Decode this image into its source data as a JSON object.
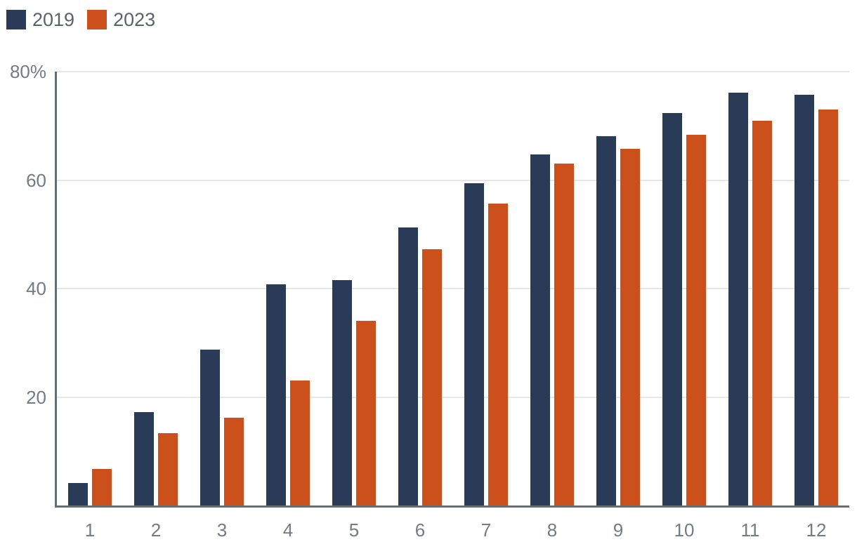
{
  "chart_data": {
    "type": "bar",
    "title": "",
    "xlabel": "",
    "ylabel": "",
    "categories": [
      "1",
      "2",
      "3",
      "4",
      "5",
      "6",
      "7",
      "8",
      "9",
      "10",
      "11",
      "12"
    ],
    "series": [
      {
        "name": "2019",
        "color": "#293B57",
        "values": [
          4.1,
          17.2,
          28.8,
          40.8,
          41.5,
          51.2,
          59.4,
          64.7,
          68.1,
          72.4,
          76.1,
          75.7
        ]
      },
      {
        "name": "2023",
        "color": "#CB501C",
        "values": [
          6.7,
          13.4,
          16.2,
          23.1,
          34.0,
          47.2,
          55.7,
          63.1,
          65.7,
          68.3,
          70.9,
          73.0
        ]
      }
    ],
    "ylim": [
      0,
      80
    ],
    "yticks": [
      {
        "value": 80,
        "label": "80%"
      },
      {
        "value": 60,
        "label": "60"
      },
      {
        "value": 40,
        "label": "40"
      },
      {
        "value": 20,
        "label": "20"
      }
    ],
    "grid": true,
    "legend_position": "top-left"
  },
  "colors": {
    "gridline": "#E6E6E6",
    "axis_line": "#686D73",
    "tick_label": "#767B82",
    "legend_label": "#5D6267",
    "background": "#FFFFFF"
  }
}
